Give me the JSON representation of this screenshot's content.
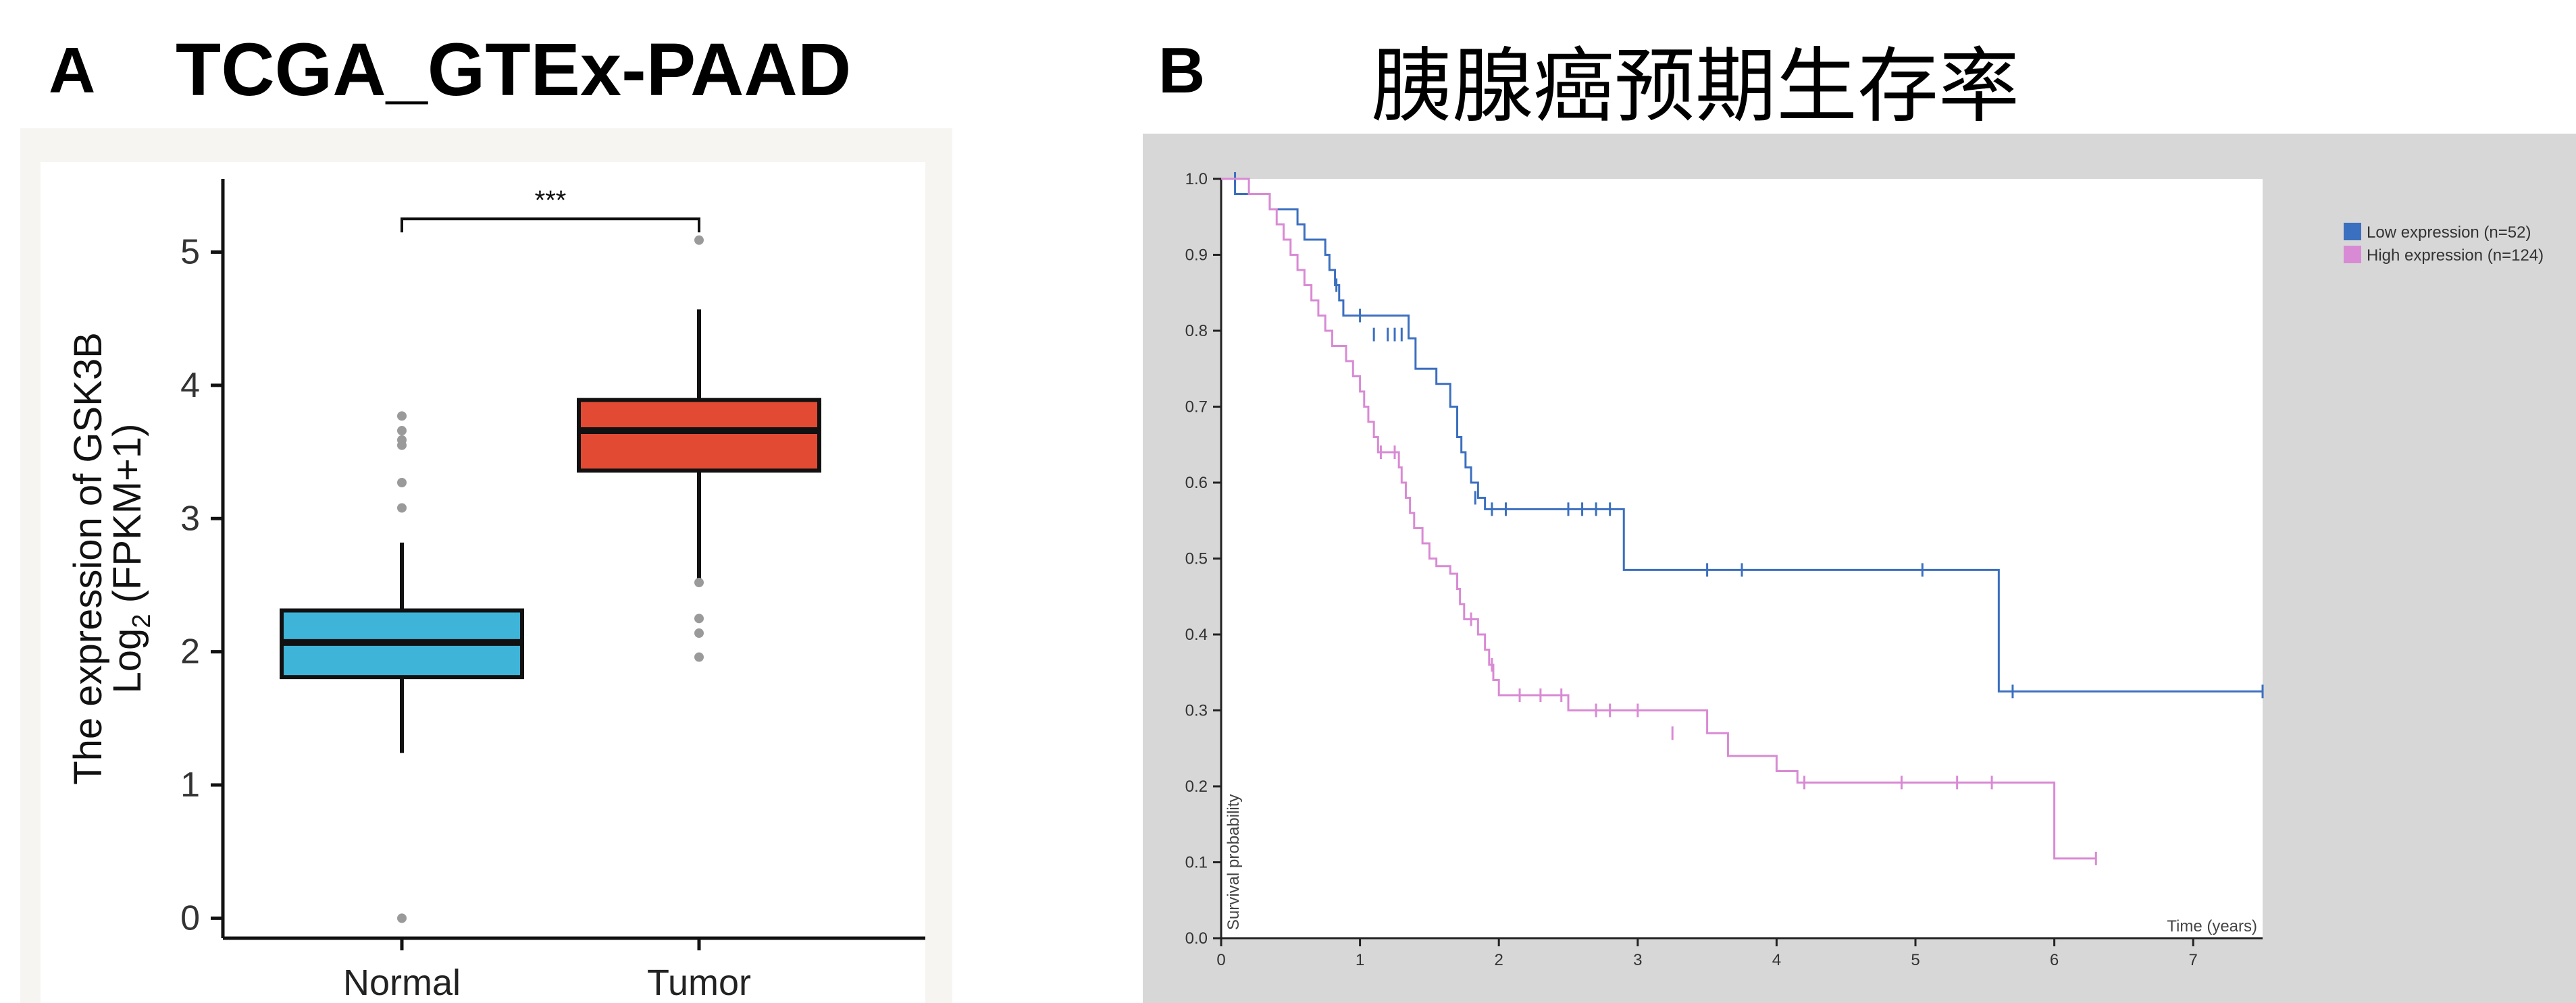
{
  "panels": {
    "a": {
      "letter": "A",
      "title": "TCGA_GTEx-PAAD"
    },
    "b": {
      "letter": "B",
      "title": "胰腺癌预期生存率"
    }
  },
  "chart_data": [
    {
      "type": "box",
      "panel": "A",
      "title": "",
      "ylabel_line1": "The expression of GSK3B",
      "ylabel_line2_prefix": "Log",
      "ylabel_line2_sub": "2",
      "ylabel_line2_suffix": " (FPKM+1)",
      "ylim": [
        -0.15,
        5.55
      ],
      "yticks": [
        "0",
        "1",
        "2",
        "3",
        "4",
        "5"
      ],
      "yticks_values": [
        0,
        1,
        2,
        3,
        4,
        5
      ],
      "significance": "***",
      "categories": [
        "Normal",
        "Tumor"
      ],
      "colors": [
        "#3db4d8",
        "#e34a33"
      ],
      "boxes": [
        {
          "name": "Normal",
          "q1": 1.81,
          "median": 2.07,
          "q3": 2.31,
          "whisker_low": 1.24,
          "whisker_high": 2.82,
          "outliers": [
            0.0,
            3.08,
            3.27,
            3.55,
            3.59,
            3.66,
            3.77
          ]
        },
        {
          "name": "Tumor",
          "q1": 3.36,
          "median": 3.66,
          "q3": 3.89,
          "whisker_low": 2.55,
          "whisker_high": 4.57,
          "outliers": [
            1.96,
            2.14,
            2.25,
            2.52,
            5.09
          ]
        }
      ]
    },
    {
      "type": "line",
      "panel": "B",
      "title": "",
      "xlabel": "Time (years)",
      "ylabel": "Survival probability",
      "xlim": [
        0,
        7.5
      ],
      "ylim": [
        0,
        1.0
      ],
      "xticks": [
        "0",
        "1",
        "2",
        "3",
        "4",
        "5",
        "6",
        "7"
      ],
      "xticks_values": [
        0,
        1,
        2,
        3,
        4,
        5,
        6,
        7
      ],
      "yticks": [
        "0.0",
        "0.1",
        "0.2",
        "0.3",
        "0.4",
        "0.5",
        "0.6",
        "0.7",
        "0.8",
        "0.9",
        "1.0"
      ],
      "yticks_values": [
        0,
        0.1,
        0.2,
        0.3,
        0.4,
        0.5,
        0.6,
        0.7,
        0.8,
        0.9,
        1.0
      ],
      "legend_position": "right",
      "series": [
        {
          "name": "Low expression (n=52)",
          "color": "#3b6fbf",
          "step": [
            [
              0,
              1.0
            ],
            [
              0.1,
              0.98
            ],
            [
              0.35,
              0.96
            ],
            [
              0.55,
              0.94
            ],
            [
              0.6,
              0.92
            ],
            [
              0.75,
              0.9
            ],
            [
              0.78,
              0.88
            ],
            [
              0.82,
              0.86
            ],
            [
              0.85,
              0.84
            ],
            [
              0.88,
              0.82
            ],
            [
              1.35,
              0.79
            ],
            [
              1.4,
              0.75
            ],
            [
              1.55,
              0.73
            ],
            [
              1.65,
              0.7
            ],
            [
              1.7,
              0.66
            ],
            [
              1.73,
              0.64
            ],
            [
              1.76,
              0.62
            ],
            [
              1.8,
              0.6
            ],
            [
              1.85,
              0.58
            ],
            [
              1.9,
              0.565
            ],
            [
              2.9,
              0.485
            ],
            [
              5.6,
              0.325
            ],
            [
              7.5,
              0.325
            ]
          ],
          "censor": [
            [
              0.1,
              1.0
            ],
            [
              0.83,
              0.86
            ],
            [
              1.0,
              0.82
            ],
            [
              1.1,
              0.795
            ],
            [
              1.2,
              0.795
            ],
            [
              1.25,
              0.795
            ],
            [
              1.3,
              0.795
            ],
            [
              1.83,
              0.58
            ],
            [
              1.95,
              0.565
            ],
            [
              2.05,
              0.565
            ],
            [
              2.5,
              0.565
            ],
            [
              2.6,
              0.565
            ],
            [
              2.7,
              0.565
            ],
            [
              2.8,
              0.565
            ],
            [
              3.5,
              0.485
            ],
            [
              3.75,
              0.485
            ],
            [
              5.05,
              0.485
            ],
            [
              5.7,
              0.325
            ],
            [
              7.5,
              0.325
            ]
          ]
        },
        {
          "name": "High expression (n=124)",
          "color": "#d98ad4",
          "step": [
            [
              0,
              1.0
            ],
            [
              0.2,
              0.98
            ],
            [
              0.35,
              0.96
            ],
            [
              0.4,
              0.94
            ],
            [
              0.45,
              0.92
            ],
            [
              0.5,
              0.9
            ],
            [
              0.55,
              0.88
            ],
            [
              0.6,
              0.86
            ],
            [
              0.65,
              0.84
            ],
            [
              0.7,
              0.82
            ],
            [
              0.75,
              0.8
            ],
            [
              0.8,
              0.78
            ],
            [
              0.9,
              0.76
            ],
            [
              0.95,
              0.74
            ],
            [
              1.0,
              0.72
            ],
            [
              1.03,
              0.7
            ],
            [
              1.06,
              0.68
            ],
            [
              1.1,
              0.66
            ],
            [
              1.13,
              0.64
            ],
            [
              1.28,
              0.62
            ],
            [
              1.3,
              0.6
            ],
            [
              1.33,
              0.58
            ],
            [
              1.36,
              0.56
            ],
            [
              1.39,
              0.54
            ],
            [
              1.45,
              0.52
            ],
            [
              1.5,
              0.5
            ],
            [
              1.55,
              0.49
            ],
            [
              1.65,
              0.48
            ],
            [
              1.7,
              0.46
            ],
            [
              1.72,
              0.44
            ],
            [
              1.75,
              0.42
            ],
            [
              1.85,
              0.4
            ],
            [
              1.9,
              0.38
            ],
            [
              1.93,
              0.36
            ],
            [
              1.96,
              0.34
            ],
            [
              2.0,
              0.32
            ],
            [
              2.5,
              0.3
            ],
            [
              3.5,
              0.27
            ],
            [
              3.65,
              0.24
            ],
            [
              4.0,
              0.22
            ],
            [
              4.15,
              0.205
            ],
            [
              6.0,
              0.105
            ],
            [
              6.3,
              0.105
            ]
          ],
          "censor": [
            [
              1.15,
              0.64
            ],
            [
              1.25,
              0.64
            ],
            [
              1.8,
              0.42
            ],
            [
              1.95,
              0.36
            ],
            [
              2.15,
              0.32
            ],
            [
              2.3,
              0.32
            ],
            [
              2.45,
              0.32
            ],
            [
              2.7,
              0.3
            ],
            [
              2.8,
              0.3
            ],
            [
              3.0,
              0.3
            ],
            [
              3.25,
              0.27
            ],
            [
              4.2,
              0.205
            ],
            [
              4.9,
              0.205
            ],
            [
              5.3,
              0.205
            ],
            [
              5.55,
              0.205
            ],
            [
              6.3,
              0.105
            ]
          ]
        }
      ]
    }
  ]
}
